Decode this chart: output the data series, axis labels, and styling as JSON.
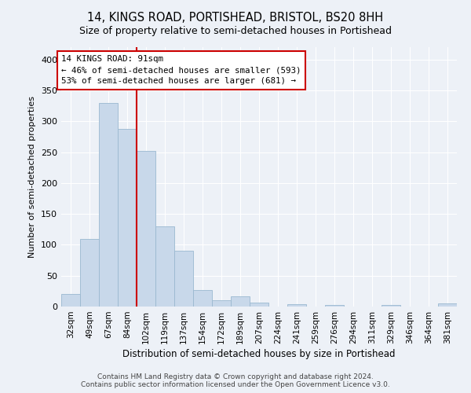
{
  "title": "14, KINGS ROAD, PORTISHEAD, BRISTOL, BS20 8HH",
  "subtitle": "Size of property relative to semi-detached houses in Portishead",
  "xlabel": "Distribution of semi-detached houses by size in Portishead",
  "ylabel": "Number of semi-detached properties",
  "bar_labels": [
    "32sqm",
    "49sqm",
    "67sqm",
    "84sqm",
    "102sqm",
    "119sqm",
    "137sqm",
    "154sqm",
    "172sqm",
    "189sqm",
    "207sqm",
    "224sqm",
    "241sqm",
    "259sqm",
    "276sqm",
    "294sqm",
    "311sqm",
    "329sqm",
    "346sqm",
    "364sqm",
    "381sqm"
  ],
  "bar_values": [
    20,
    110,
    330,
    287,
    252,
    130,
    90,
    27,
    10,
    17,
    6,
    0,
    4,
    0,
    3,
    0,
    0,
    2,
    0,
    0,
    5
  ],
  "bar_color": "#c8d8ea",
  "bar_edgecolor": "#9ab8d0",
  "line_color": "#cc0000",
  "annotation_line1": "14 KINGS ROAD: 91sqm",
  "annotation_line2": "← 46% of semi-detached houses are smaller (593)",
  "annotation_line3": "53% of semi-detached houses are larger (681) →",
  "ylim": [
    0,
    420
  ],
  "yticks": [
    0,
    50,
    100,
    150,
    200,
    250,
    300,
    350,
    400
  ],
  "footer1": "Contains HM Land Registry data © Crown copyright and database right 2024.",
  "footer2": "Contains public sector information licensed under the Open Government Licence v3.0.",
  "background_color": "#edf1f7",
  "grid_color": "#ffffff",
  "title_fontsize": 10.5,
  "subtitle_fontsize": 9,
  "red_line_x": 3.5
}
